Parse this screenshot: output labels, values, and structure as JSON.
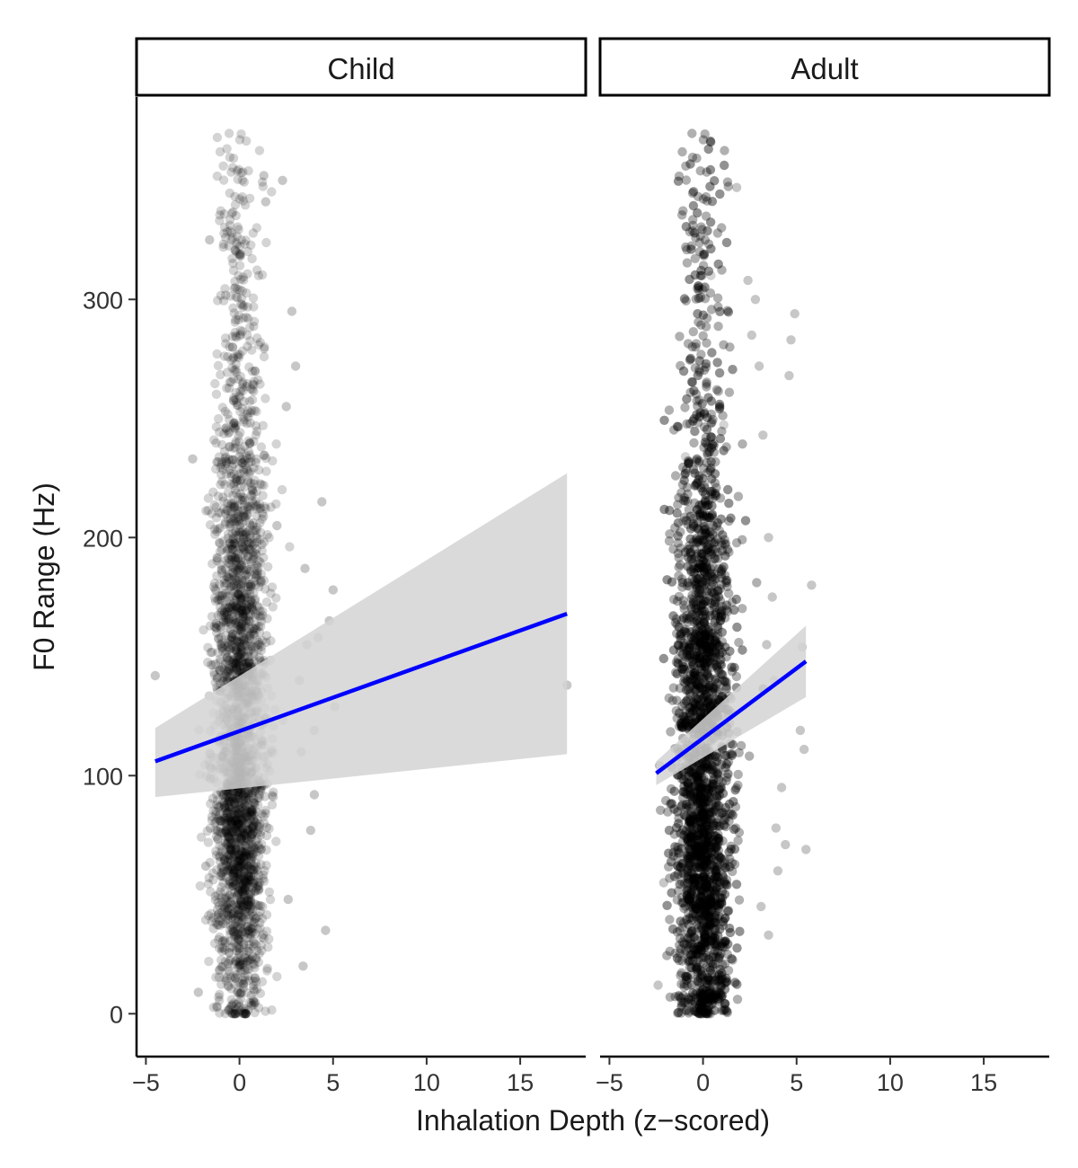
{
  "chart_data": {
    "type": "scatter",
    "xlabel": "Inhalation Depth (z−scored)",
    "ylabel": "F0 Range (Hz)",
    "xlim": [
      -5.5,
      18.5
    ],
    "ylim": [
      -18,
      385
    ],
    "xticks": [
      -5,
      0,
      5,
      10,
      15
    ],
    "xtick_labels": [
      "−5",
      "0",
      "5",
      "10",
      "15"
    ],
    "yticks": [
      0,
      100,
      200,
      300
    ],
    "ytick_labels": [
      "0",
      "100",
      "200",
      "300"
    ],
    "grid": false,
    "legend": "none",
    "colors": {
      "points": "#000000",
      "fit_line": "#0000ff",
      "ribbon": "#d3d3d3",
      "axis": "#000000"
    },
    "panels": [
      {
        "facet_label": "Child",
        "points_summary": {
          "n_approx": 2600,
          "x_center": 0.0,
          "x_sd": 0.7,
          "y_range": [
            0,
            370
          ],
          "y_mode": 75
        },
        "outliers": [
          [
            -4.5,
            142
          ],
          [
            -2.5,
            233
          ],
          [
            -2.2,
            9
          ],
          [
            -1.8,
            62
          ],
          [
            -1.6,
            325
          ],
          [
            1.3,
            352
          ],
          [
            2.0,
            205
          ],
          [
            2.3,
            350
          ],
          [
            2.5,
            255
          ],
          [
            2.6,
            48
          ],
          [
            2.8,
            295
          ],
          [
            3.0,
            272
          ],
          [
            3.2,
            140
          ],
          [
            3.3,
            110
          ],
          [
            3.4,
            20
          ],
          [
            3.5,
            187
          ],
          [
            3.6,
            155
          ],
          [
            3.8,
            77
          ],
          [
            4.0,
            92
          ],
          [
            4.2,
            158
          ],
          [
            4.4,
            215
          ],
          [
            4.6,
            35
          ],
          [
            4.8,
            165
          ],
          [
            5.0,
            178
          ],
          [
            5.1,
            129
          ],
          [
            4.0,
            119
          ],
          [
            1.4,
            341
          ],
          [
            17.5,
            138
          ]
        ],
        "fit": {
          "x": [
            -4.5,
            17.5
          ],
          "y": [
            106,
            168
          ]
        },
        "ci_lower": {
          "x": [
            -4.5,
            17.5
          ],
          "y": [
            91,
            109
          ]
        },
        "ci_upper": {
          "x": [
            -4.5,
            17.5
          ],
          "y": [
            120,
            227
          ]
        }
      },
      {
        "facet_label": "Adult",
        "points_summary": {
          "n_approx": 5200,
          "x_center": 0.0,
          "x_sd": 0.75,
          "y_range": [
            0,
            370
          ],
          "y_mode": 60
        },
        "outliers": [
          [
            -2.1,
            55
          ],
          [
            -2.4,
            12
          ],
          [
            1.8,
            347
          ],
          [
            2.4,
            308
          ],
          [
            2.6,
            285
          ],
          [
            2.8,
            300
          ],
          [
            3.0,
            272
          ],
          [
            3.2,
            243
          ],
          [
            3.5,
            200
          ],
          [
            3.7,
            175
          ],
          [
            3.4,
            155
          ],
          [
            3.8,
            140
          ],
          [
            3.9,
            78
          ],
          [
            4.0,
            60
          ],
          [
            4.2,
            95
          ],
          [
            4.4,
            71
          ],
          [
            4.6,
            268
          ],
          [
            4.7,
            283
          ],
          [
            4.9,
            294
          ],
          [
            5.2,
            119
          ],
          [
            5.4,
            111
          ],
          [
            5.3,
            154
          ],
          [
            5.5,
            69
          ],
          [
            5.8,
            180
          ],
          [
            3.1,
            45
          ],
          [
            3.5,
            33
          ]
        ],
        "fit": {
          "x": [
            -2.5,
            5.5
          ],
          "y": [
            101,
            148
          ]
        },
        "ci_lower": {
          "x": [
            -2.5,
            5.5
          ],
          "y": [
            96,
            133
          ]
        },
        "ci_upper": {
          "x": [
            -2.5,
            5.5
          ],
          "y": [
            106,
            163
          ]
        }
      }
    ]
  }
}
